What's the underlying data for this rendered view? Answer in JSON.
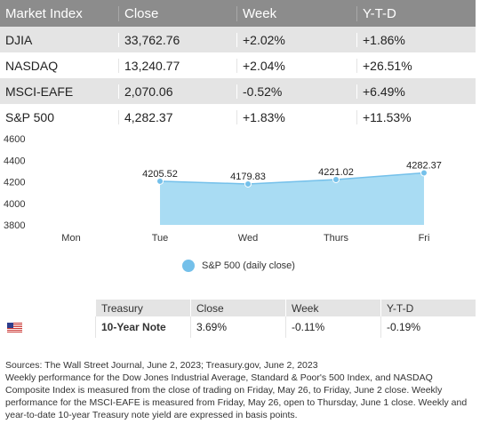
{
  "market_table": {
    "headers": [
      "Market Index",
      "Close",
      "Week",
      "Y-T-D"
    ],
    "rows": [
      [
        "DJIA",
        "33,762.76",
        "+2.02%",
        "+1.86%"
      ],
      [
        "NASDAQ",
        "13,240.77",
        "+2.04%",
        "+26.51%"
      ],
      [
        "MSCI-EAFE",
        "2,070.06",
        "-0.52%",
        "+6.49%"
      ],
      [
        "S&P 500",
        "4,282.37",
        "+1.83%",
        "+11.53%"
      ]
    ]
  },
  "chart_data": {
    "type": "area",
    "categories": [
      "Mon",
      "Tue",
      "Wed",
      "Thurs",
      "Fri"
    ],
    "series": [
      {
        "name": "S&P 500 (daily close)",
        "values": [
          null,
          4205.52,
          4179.83,
          4221.02,
          4282.37
        ]
      }
    ],
    "data_labels": [
      "",
      "4205.52",
      "4179.83",
      "4221.02",
      "4282.37"
    ],
    "y_ticks": [
      "4600",
      "4400",
      "4200",
      "4000",
      "3800"
    ],
    "ylim": [
      3800,
      4600
    ],
    "color": "#74c0ea",
    "grid": false,
    "legend_placement": "bottom"
  },
  "legend": {
    "label": "S&P 500 (daily close)"
  },
  "treasury_table": {
    "headers": [
      "",
      "Treasury",
      "Close",
      "Week",
      "Y-T-D"
    ],
    "row": {
      "flag_icon": "us-flag-icon",
      "name": "10-Year Note",
      "close": "3.69%",
      "week": "-0.11%",
      "ytd": "-0.19%"
    }
  },
  "notes": {
    "line1": "Sources: The Wall Street Journal, June 2, 2023; Treasury.gov, June 2, 2023",
    "line2": "Weekly performance for the Dow Jones Industrial Average, Standard & Poor's 500 Index, and NASDAQ Composite Index is measured from the close of trading on Friday, May 26, to Friday, June 2 close. Weekly performance for the MSCI-EAFE is measured from Friday, May 26, open to Thursday, June 1 close. Weekly and year-to-date 10-year Treasury note yield are expressed in basis points."
  }
}
